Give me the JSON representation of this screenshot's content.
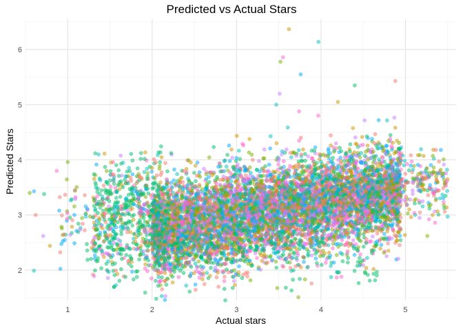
{
  "chart_data": {
    "type": "scatter",
    "title": "Predicted vs Actual Stars",
    "xlabel": "Actual stars",
    "ylabel": "Predicted Stars",
    "xlim": [
      0.5,
      5.6
    ],
    "ylim": [
      1.45,
      6.55
    ],
    "xticks": [
      "1",
      "2",
      "3",
      "4",
      "5"
    ],
    "yticks": [
      "2",
      "3",
      "4",
      "5",
      "6"
    ],
    "grid": true,
    "legend": "none",
    "colors": [
      "#f8766d",
      "#cd9600",
      "#7cae00",
      "#00be67",
      "#00bfc4",
      "#00a9ff",
      "#c77cff",
      "#ff61cc"
    ],
    "point_alpha": 0.5,
    "outliers": [
      {
        "x": 3.62,
        "y": 6.37
      },
      {
        "x": 3.97,
        "y": 6.14
      },
      {
        "x": 3.55,
        "y": 5.86
      },
      {
        "x": 3.52,
        "y": 5.78
      },
      {
        "x": 3.76,
        "y": 5.55
      },
      {
        "x": 4.88,
        "y": 5.43
      },
      {
        "x": 4.4,
        "y": 5.35
      },
      {
        "x": 3.51,
        "y": 5.2
      },
      {
        "x": 4.2,
        "y": 5.05
      },
      {
        "x": 3.47,
        "y": 5.0
      },
      {
        "x": 3.74,
        "y": 4.88
      },
      {
        "x": 0.55,
        "y": 3.4
      },
      {
        "x": 0.6,
        "y": 3.43
      },
      {
        "x": 0.62,
        "y": 3.0
      },
      {
        "x": 0.72,
        "y": 3.38
      },
      {
        "x": 0.71,
        "y": 2.62
      },
      {
        "x": 0.79,
        "y": 2.44
      },
      {
        "x": 0.6,
        "y": 1.99
      },
      {
        "x": 0.87,
        "y": 3.8
      },
      {
        "x": 1.0,
        "y": 3.96
      },
      {
        "x": 0.9,
        "y": 3.08
      },
      {
        "x": 1.3,
        "y": 1.92
      },
      {
        "x": 1.55,
        "y": 1.7
      },
      {
        "x": 2.97,
        "y": 1.8
      },
      {
        "x": 2.98,
        "y": 1.73
      },
      {
        "x": 5.5,
        "y": 2.97
      },
      {
        "x": 5.35,
        "y": 2.86
      },
      {
        "x": 5.26,
        "y": 2.62
      },
      {
        "x": 5.42,
        "y": 4.18
      },
      {
        "x": 5.36,
        "y": 4.18
      }
    ]
  }
}
